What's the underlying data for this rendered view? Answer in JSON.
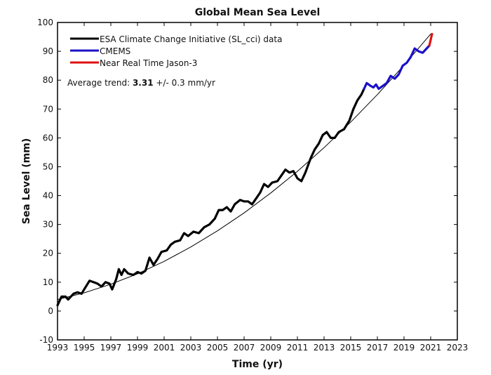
{
  "chart_data": {
    "type": "line",
    "title": "Global Mean Sea Level",
    "xlabel": "Time (yr)",
    "ylabel": "Sea Level (mm)",
    "xlim": [
      1993,
      2023
    ],
    "ylim": [
      -10,
      100
    ],
    "xticks": [
      1993,
      1995,
      1997,
      1999,
      2001,
      2003,
      2005,
      2007,
      2009,
      2011,
      2013,
      2015,
      2017,
      2019,
      2021,
      2023
    ],
    "yticks": [
      -10,
      0,
      10,
      20,
      30,
      40,
      50,
      60,
      70,
      80,
      90,
      100
    ],
    "grid": false,
    "legend_position": "top-left",
    "annotation": {
      "prefix": "Average trend: ",
      "value": "3.31",
      "suffix": " +/- 0.3 mm/yr"
    },
    "series": [
      {
        "name": "ESA Climate Change Initiative (SL_cci) data",
        "color": "#000000",
        "x": [
          1993.0,
          1993.3,
          1993.6,
          1993.8,
          1994.2,
          1994.5,
          1994.8,
          1995.2,
          1995.4,
          1995.7,
          1996.0,
          1996.3,
          1996.6,
          1996.9,
          1997.1,
          1997.4,
          1997.6,
          1997.8,
          1998.0,
          1998.3,
          1998.7,
          1999.0,
          1999.3,
          1999.6,
          1999.9,
          2000.2,
          2000.5,
          2000.8,
          2001.2,
          2001.5,
          2001.8,
          2002.2,
          2002.5,
          2002.8,
          2003.2,
          2003.6,
          2004.0,
          2004.4,
          2004.8,
          2005.1,
          2005.4,
          2005.7,
          2006.0,
          2006.3,
          2006.7,
          2007.0,
          2007.3,
          2007.6,
          2007.9,
          2008.2,
          2008.5,
          2008.8,
          2009.1,
          2009.5,
          2009.8,
          2010.1,
          2010.4,
          2010.7,
          2011.0,
          2011.3,
          2011.6,
          2012.0,
          2012.3,
          2012.6,
          2012.9,
          2013.2,
          2013.5,
          2013.8,
          2014.1,
          2014.5,
          2014.9,
          2015.2,
          2015.5,
          2015.8,
          2016.0
        ],
        "y": [
          2,
          5,
          5,
          4,
          6,
          6.5,
          6,
          9,
          10.5,
          10,
          9.5,
          8.5,
          10,
          9.5,
          7.5,
          11,
          14.5,
          12.5,
          14.5,
          13,
          12.5,
          13.5,
          13,
          14,
          18.5,
          16,
          18,
          20.5,
          21,
          23,
          24,
          24.5,
          27,
          26,
          27.5,
          27,
          29,
          30,
          32,
          35,
          35,
          36,
          34.5,
          37,
          38.5,
          38,
          38,
          37,
          39,
          41,
          44,
          43,
          44.5,
          45,
          47,
          49,
          48,
          48.5,
          46,
          45,
          48,
          53,
          56,
          58,
          61,
          62,
          60,
          60,
          62,
          63,
          66,
          70,
          73,
          75,
          77
        ]
      },
      {
        "name": "CMEMS",
        "color": "#1a10c8",
        "x": [
          2016.0,
          2016.2,
          2016.5,
          2016.7,
          2016.9,
          2017.1,
          2017.4,
          2017.7,
          2018.0,
          2018.3,
          2018.6,
          2018.9,
          2019.2,
          2019.5,
          2019.8,
          2020.1,
          2020.4,
          2020.7,
          2020.9
        ],
        "y": [
          77,
          79,
          78,
          77.5,
          78.5,
          77,
          78,
          79,
          81.5,
          80.5,
          82,
          85,
          86,
          88,
          91,
          90,
          89.5,
          91,
          92
        ]
      },
      {
        "name": "Near Real Time Jason-3",
        "color": "#e01010",
        "x": [
          2020.9,
          2021.0,
          2021.1
        ],
        "y": [
          92,
          94,
          96
        ]
      },
      {
        "color": "#000000",
        "role": "trend",
        "x": [
          1993,
          1995,
          1997,
          1999,
          2001,
          2003,
          2005,
          2007,
          2009,
          2011,
          2013,
          2015,
          2017,
          2019,
          2021
        ],
        "y": [
          4,
          6.3,
          9.3,
          12.9,
          17.2,
          22.2,
          27.8,
          34,
          40.9,
          48.4,
          56.6,
          65.5,
          75,
          85.2,
          96
        ]
      }
    ]
  }
}
